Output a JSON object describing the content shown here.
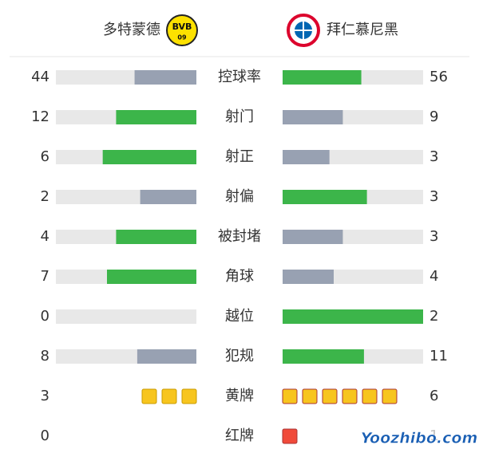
{
  "header": {
    "home": {
      "name": "多特蒙德",
      "logo_text": "BVB",
      "logo_sub": "09"
    },
    "away": {
      "name": "拜仁慕尼黑"
    }
  },
  "stats": [
    {
      "label": "控球率",
      "home": 44,
      "away": 56
    },
    {
      "label": "射门",
      "home": 12,
      "away": 9
    },
    {
      "label": "射正",
      "home": 6,
      "away": 3
    },
    {
      "label": "射偏",
      "home": 2,
      "away": 3
    },
    {
      "label": "被封堵",
      "home": 4,
      "away": 3
    },
    {
      "label": "角球",
      "home": 7,
      "away": 4
    },
    {
      "label": "越位",
      "home": 0,
      "away": 2
    },
    {
      "label": "犯规",
      "home": 8,
      "away": 11
    },
    {
      "label": "黄牌",
      "home": 3,
      "away": 6,
      "cards": true,
      "color": "#f7c51e"
    },
    {
      "label": "红牌",
      "home": 0,
      "away": 1,
      "cards": true,
      "color": "#f04a3a"
    }
  ],
  "colors": {
    "more": "#3cb54a",
    "less": "#98a1b2",
    "track": "#e8e8e8"
  },
  "watermark": "Yoozhibo.com"
}
